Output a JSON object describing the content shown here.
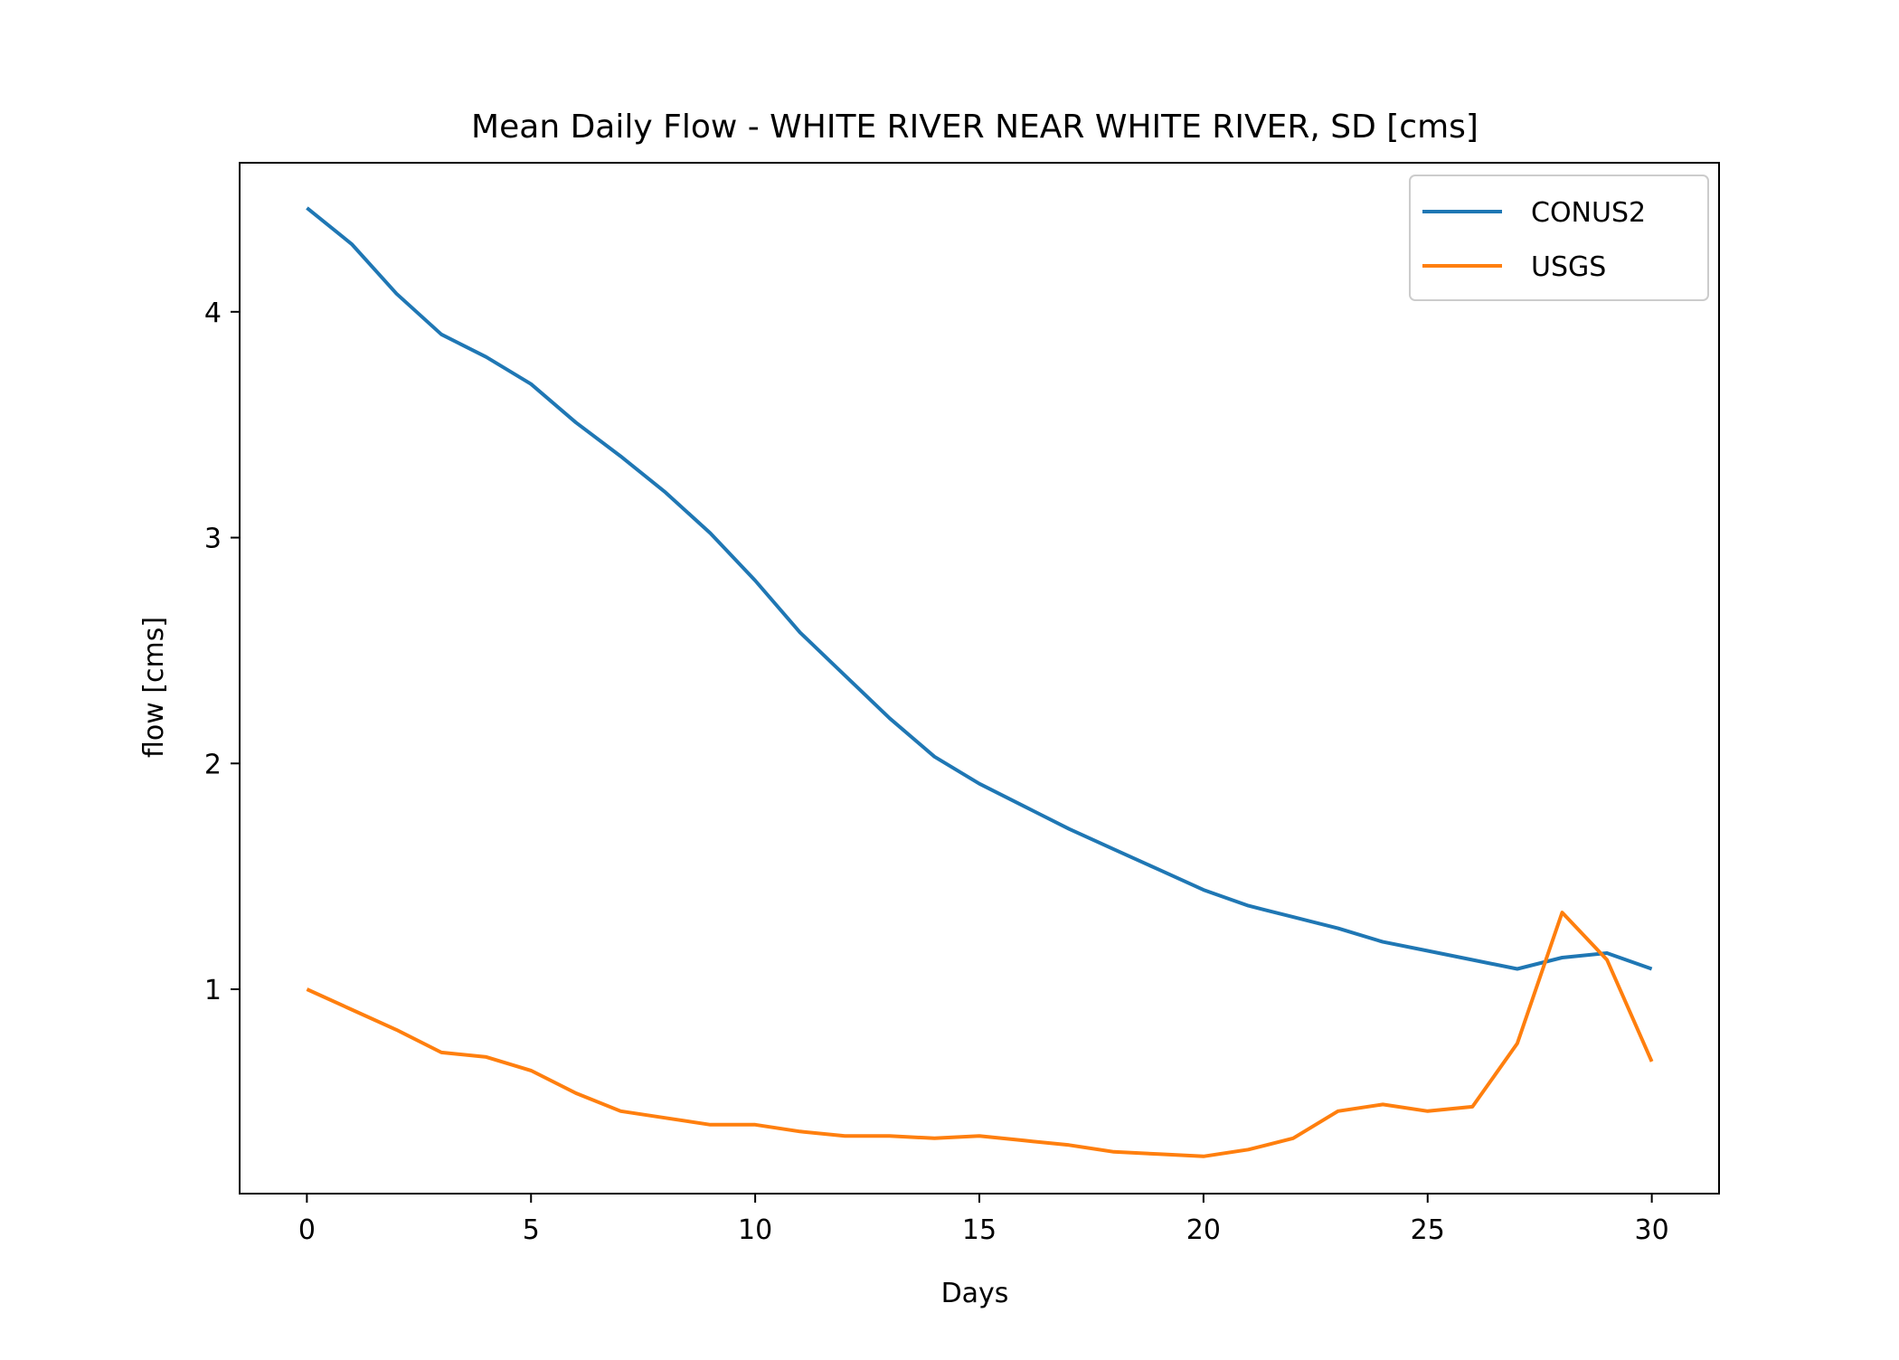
{
  "chart_data": {
    "type": "line",
    "title": "Mean Daily Flow - WHITE RIVER NEAR WHITE RIVER, SD [cms]",
    "xlabel": "Days",
    "ylabel": "flow [cms]",
    "xlim": [
      -1.5,
      31.5
    ],
    "ylim": [
      0.095,
      4.66
    ],
    "xticks": [
      0,
      5,
      10,
      15,
      20,
      25,
      30
    ],
    "yticks": [
      1,
      2,
      3,
      4
    ],
    "grid": false,
    "legend_position": "top-right",
    "x": [
      0,
      1,
      2,
      3,
      4,
      5,
      6,
      7,
      8,
      9,
      10,
      11,
      12,
      13,
      14,
      15,
      16,
      17,
      18,
      19,
      20,
      21,
      22,
      23,
      24,
      25,
      26,
      27,
      28,
      29,
      30
    ],
    "series": [
      {
        "name": "CONUS2",
        "color": "#1f77b4",
        "values": [
          4.46,
          4.3,
          4.08,
          3.9,
          3.8,
          3.68,
          3.51,
          3.36,
          3.2,
          3.02,
          2.81,
          2.58,
          2.39,
          2.2,
          2.03,
          1.91,
          1.81,
          1.71,
          1.62,
          1.53,
          1.44,
          1.37,
          1.32,
          1.27,
          1.21,
          1.17,
          1.13,
          1.09,
          1.14,
          1.16,
          1.09
        ]
      },
      {
        "name": "USGS",
        "color": "#ff7f0e",
        "values": [
          1.0,
          0.91,
          0.82,
          0.72,
          0.7,
          0.64,
          0.54,
          0.46,
          0.43,
          0.4,
          0.4,
          0.37,
          0.35,
          0.35,
          0.34,
          0.35,
          0.33,
          0.31,
          0.28,
          0.27,
          0.26,
          0.29,
          0.34,
          0.46,
          0.49,
          0.46,
          0.48,
          0.76,
          1.34,
          1.13,
          0.68
        ]
      }
    ]
  }
}
